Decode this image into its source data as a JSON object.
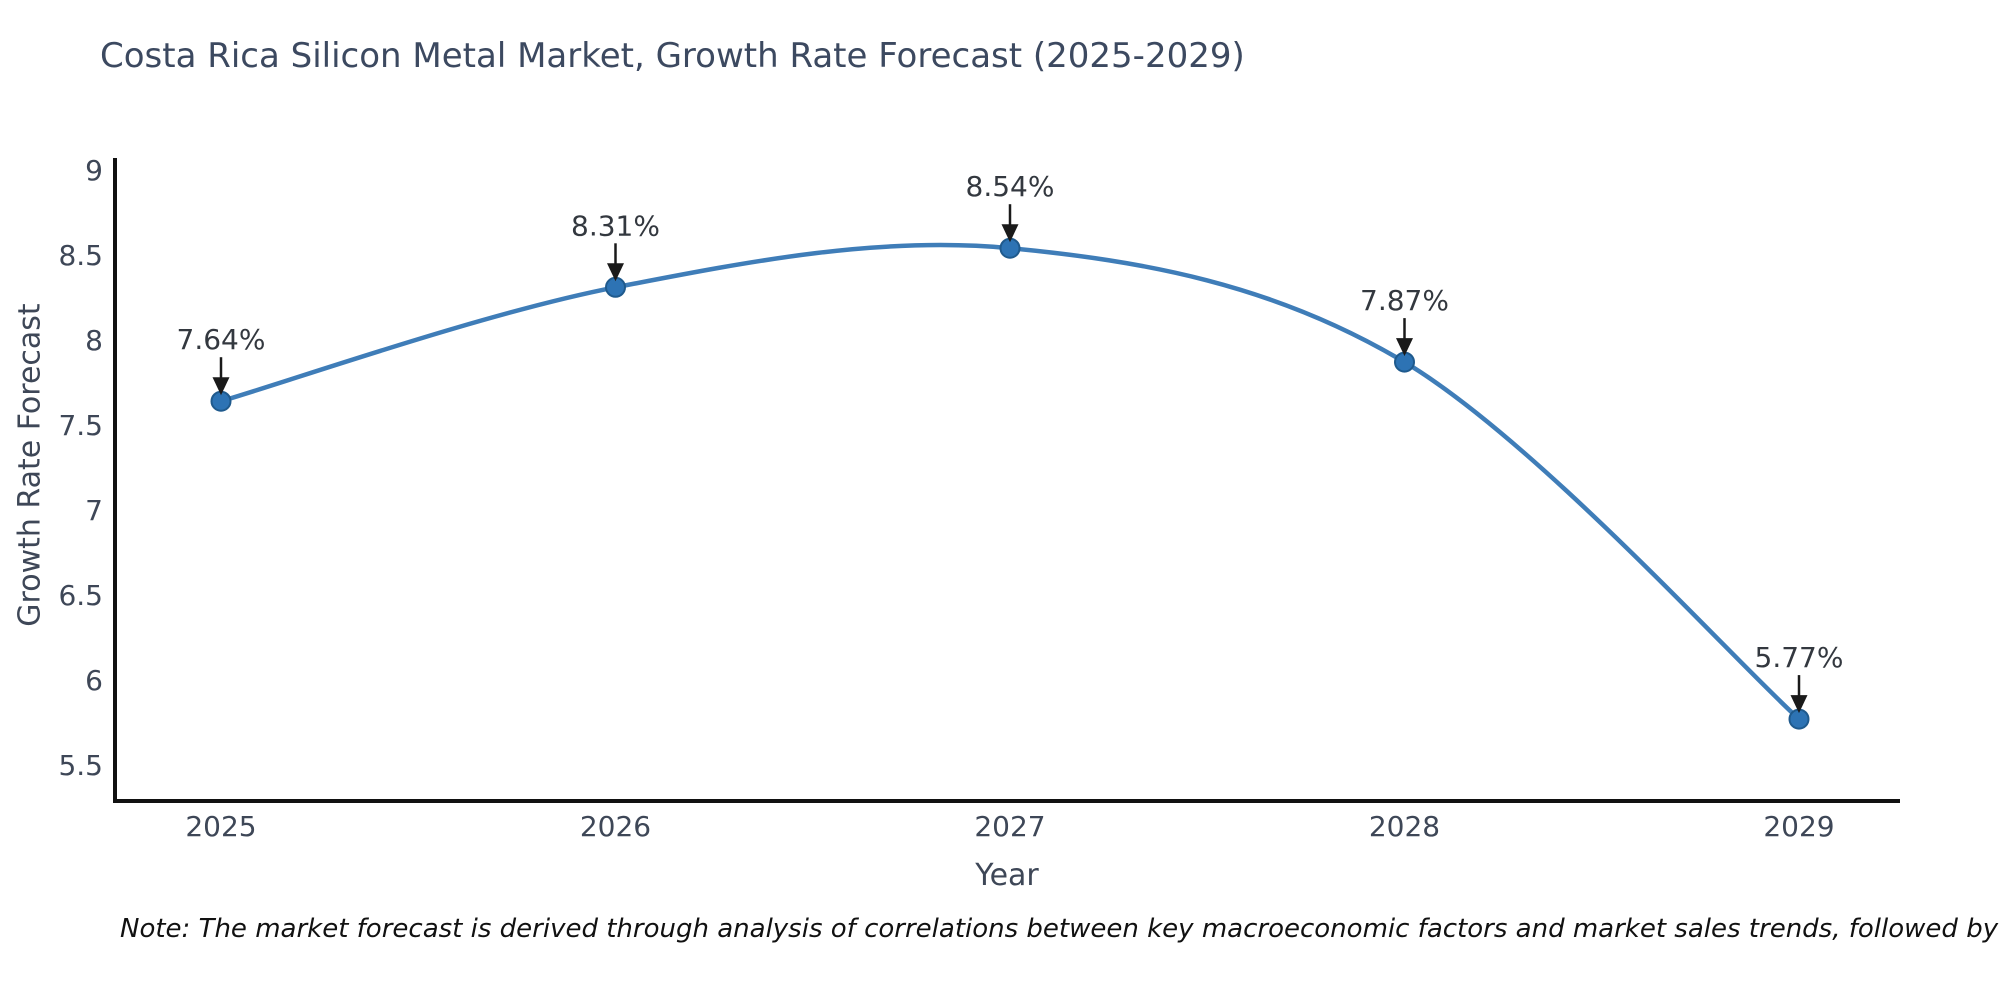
{
  "title": "Costa Rica Silicon Metal Market, Growth Rate Forecast (2025-2029)",
  "note": "Note: The market forecast is derived through analysis of correlations between key macroeconomic factors and market sales trends, followed by predictive modeling to project future sales",
  "chart_data": {
    "type": "line",
    "title": "Costa Rica Silicon Metal Market, Growth Rate Forecast (2025-2029)",
    "xlabel": "Year",
    "ylabel": "Growth Rate Forecast",
    "categories": [
      "2025",
      "2026",
      "2027",
      "2028",
      "2029"
    ],
    "values": [
      7.64,
      8.31,
      8.54,
      7.87,
      5.77
    ],
    "point_labels": [
      "7.64%",
      "8.31%",
      "8.54%",
      "7.87%",
      "5.77%"
    ],
    "yticks": [
      "5.5",
      "6",
      "6.5",
      "7",
      "7.5",
      "8",
      "8.5",
      "9"
    ],
    "ylim": [
      5.28,
      9.05
    ],
    "grid": "off",
    "legend": "none",
    "colors": {
      "line": "#3f7db8",
      "marker_fill": "#2d73b4",
      "marker_edge": "#1f5a8d",
      "axis": "#111111",
      "tick_text": "#3e4757",
      "annotation_text": "#33383f",
      "arrow": "#1a1a1a"
    }
  }
}
